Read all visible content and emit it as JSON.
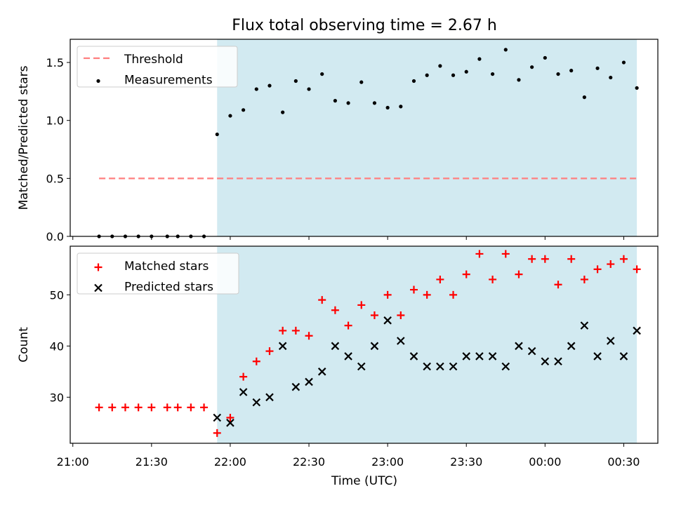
{
  "figure": {
    "title": "Flux total observing time = 2.67 h"
  },
  "colors": {
    "shade": "#add8e6",
    "threshold": "#ff7f7f",
    "measurement": "#000000",
    "matched": "#ff0000",
    "predicted": "#000000"
  },
  "x_axis": {
    "label": "Time (UTC)",
    "tick_labels": [
      "21:00",
      "21:30",
      "22:00",
      "22:30",
      "23:00",
      "23:30",
      "00:00",
      "00:30"
    ]
  },
  "chart_data": [
    {
      "type": "scatter",
      "title": "Flux total observing time = 2.67 h",
      "xlabel": "",
      "ylabel": "Matched/Predicted stars",
      "xlim": [
        -1,
        223
      ],
      "x_unit": "minutes after 21:00 UTC",
      "ylim": [
        0,
        1.7
      ],
      "yticks": [
        0.0,
        0.5,
        1.0,
        1.5
      ],
      "ytick_labels": [
        "0.0",
        "0.5",
        "1.0",
        "1.5"
      ],
      "legend": {
        "position": "upper left",
        "entries": [
          "Threshold",
          "Measurements"
        ]
      },
      "shaded_region": [
        55,
        215
      ],
      "series": [
        {
          "name": "Threshold",
          "kind": "line-dashed",
          "x": [
            10,
            215
          ],
          "y": [
            0.5,
            0.5
          ]
        },
        {
          "name": "Measurements",
          "kind": "dot",
          "x": [
            10,
            15,
            20,
            25,
            30,
            36,
            40,
            45,
            50,
            55,
            60,
            65,
            70,
            75,
            80,
            85,
            90,
            95,
            100,
            105,
            110,
            115,
            120,
            125,
            130,
            135,
            140,
            145,
            150,
            155,
            160,
            165,
            170,
            175,
            180,
            185,
            190,
            195,
            200,
            205,
            210,
            215
          ],
          "y": [
            0,
            0,
            0,
            0,
            0,
            0,
            0,
            0,
            0,
            0.88,
            1.04,
            1.09,
            1.27,
            1.3,
            1.07,
            1.34,
            1.27,
            1.4,
            1.17,
            1.15,
            1.33,
            1.15,
            1.11,
            1.12,
            1.34,
            1.39,
            1.47,
            1.39,
            1.42,
            1.53,
            1.4,
            1.61,
            1.35,
            1.46,
            1.54,
            1.4,
            1.43,
            1.2,
            1.45,
            1.37,
            1.5,
            1.28
          ]
        }
      ]
    },
    {
      "type": "scatter",
      "title": "",
      "xlabel": "Time (UTC)",
      "ylabel": "Count",
      "xlim": [
        -1,
        223
      ],
      "x_unit": "minutes after 21:00 UTC",
      "ylim": [
        21,
        59.5
      ],
      "yticks": [
        30,
        40,
        50
      ],
      "ytick_labels": [
        "30",
        "40",
        "50"
      ],
      "legend": {
        "position": "upper left",
        "entries": [
          "Matched stars",
          "Predicted stars"
        ]
      },
      "shaded_region": [
        55,
        215
      ],
      "series": [
        {
          "name": "Matched stars",
          "kind": "plus",
          "x": [
            10,
            15,
            20,
            25,
            30,
            36,
            40,
            45,
            50,
            55,
            60,
            65,
            70,
            75,
            80,
            85,
            90,
            95,
            100,
            105,
            110,
            115,
            120,
            125,
            130,
            135,
            140,
            145,
            150,
            155,
            160,
            165,
            170,
            175,
            180,
            185,
            190,
            195,
            200,
            205,
            210,
            215
          ],
          "y": [
            28,
            28,
            28,
            28,
            28,
            28,
            28,
            28,
            28,
            23,
            26,
            34,
            37,
            39,
            43,
            43,
            42,
            49,
            47,
            44,
            48,
            46,
            50,
            46,
            51,
            50,
            53,
            50,
            54,
            58,
            53,
            58,
            54,
            57,
            57,
            52,
            57,
            53,
            55,
            56,
            57,
            55
          ]
        },
        {
          "name": "Predicted stars",
          "kind": "x",
          "x": [
            55,
            60,
            65,
            70,
            75,
            80,
            85,
            90,
            95,
            100,
            105,
            110,
            115,
            120,
            125,
            130,
            135,
            140,
            145,
            150,
            155,
            160,
            165,
            170,
            175,
            180,
            185,
            190,
            195,
            200,
            205,
            210,
            215
          ],
          "y": [
            26,
            25,
            31,
            29,
            30,
            40,
            32,
            33,
            35,
            40,
            38,
            36,
            40,
            45,
            41,
            38,
            36,
            36,
            36,
            38,
            38,
            38,
            36,
            40,
            39,
            37,
            37,
            40,
            44,
            38,
            41,
            38,
            43
          ]
        }
      ]
    }
  ]
}
